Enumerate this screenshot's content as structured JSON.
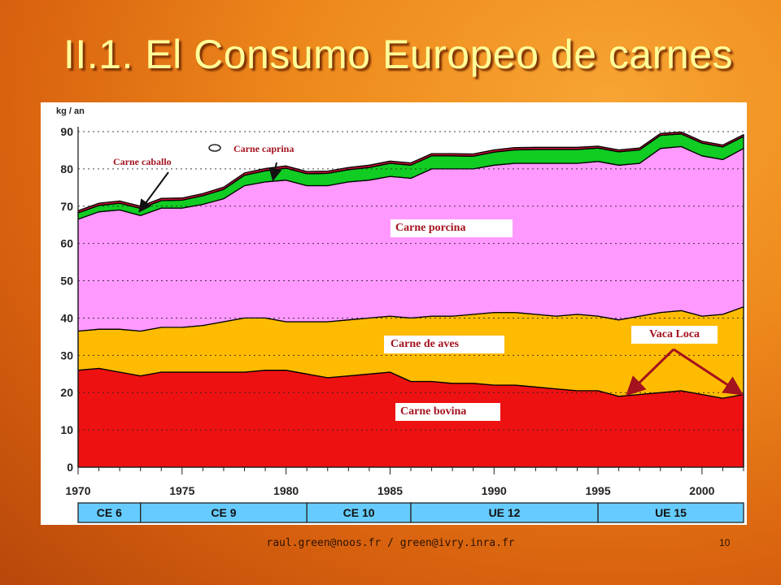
{
  "slide": {
    "title": "II.1. El Consumo Europeo de carnes",
    "footer": "raul.green@noos.fr / green@ivry.inra.fr",
    "page_number": "10"
  },
  "colors": {
    "background": "#e8801c",
    "title": "#ffff99",
    "bovina": "#ee1111",
    "aves": "#ffbb00",
    "porcina": "#ff99ff",
    "caprina": "#11cc22",
    "caballo": "#cc1133",
    "label_text": "#a3121e",
    "arrow": "#a3121e",
    "period_band": "#66ccff"
  },
  "chart_data": {
    "type": "area",
    "stacked": true,
    "ylabel": "kg / an",
    "ylim": [
      0,
      90
    ],
    "yticks": [
      "0",
      "10",
      "20",
      "30",
      "40",
      "50",
      "60",
      "70",
      "80",
      "90"
    ],
    "xlim": [
      1970,
      2002
    ],
    "xticks": [
      "1970",
      "1975",
      "1980",
      "1985",
      "1990",
      "1995",
      "2000"
    ],
    "grid": "dotted-horizontal",
    "x": [
      1970,
      1971,
      1972,
      1973,
      1974,
      1975,
      1976,
      1977,
      1978,
      1979,
      1980,
      1981,
      1982,
      1983,
      1984,
      1985,
      1986,
      1987,
      1988,
      1989,
      1990,
      1991,
      1992,
      1993,
      1994,
      1995,
      1996,
      1997,
      1998,
      1999,
      2000,
      2001,
      2002
    ],
    "series": [
      {
        "name": "Carne bovina",
        "values": [
          26,
          26.5,
          25.5,
          24.5,
          25.5,
          25.5,
          25.5,
          25.5,
          25.5,
          26,
          26,
          25,
          24,
          24.5,
          25,
          25.5,
          23,
          23,
          22.5,
          22.5,
          22,
          22,
          21.5,
          21,
          20.5,
          20.5,
          19,
          19.5,
          20,
          20.5,
          19.5,
          18.5,
          19.5
        ]
      },
      {
        "name": "Carne de aves",
        "values": [
          10.5,
          10.5,
          11.5,
          12,
          12,
          12,
          12.5,
          13.5,
          14.5,
          14,
          13,
          14,
          15,
          15,
          15,
          15,
          17,
          17.5,
          18,
          18.5,
          19.5,
          19.5,
          19.5,
          19.5,
          20.5,
          20,
          20.5,
          21,
          21.5,
          21.5,
          21,
          22.5,
          23.5
        ]
      },
      {
        "name": "Carne porcina",
        "values": [
          30,
          31.5,
          32,
          31,
          32,
          32,
          32.5,
          33,
          35.5,
          36.5,
          38,
          36.5,
          36.5,
          37,
          37,
          37.5,
          37.5,
          39.5,
          39.5,
          39,
          39.5,
          40,
          40.5,
          41,
          40.5,
          41.5,
          41.5,
          41,
          44,
          44,
          43,
          41.5,
          42.5
        ]
      },
      {
        "name": "Carne caprina",
        "values": [
          1.7,
          1.7,
          1.8,
          1.9,
          2,
          2.1,
          2.3,
          2.5,
          2.8,
          3,
          3.2,
          3.2,
          3.3,
          3.3,
          3.4,
          3.5,
          3.5,
          3.5,
          3.5,
          3.4,
          3.5,
          3.6,
          3.7,
          3.7,
          3.7,
          3.6,
          3.6,
          3.6,
          3.5,
          3.4,
          3.4,
          3.4,
          3.2
        ]
      },
      {
        "name": "Carne caballo",
        "values": [
          0.6,
          0.6,
          0.6,
          0.6,
          0.6,
          0.6,
          0.6,
          0.6,
          0.6,
          0.6,
          0.6,
          0.6,
          0.6,
          0.6,
          0.6,
          0.6,
          0.6,
          0.6,
          0.6,
          0.6,
          0.6,
          0.6,
          0.6,
          0.6,
          0.6,
          0.5,
          0.5,
          0.5,
          0.5,
          0.5,
          0.5,
          0.5,
          0.5
        ]
      }
    ],
    "periods": [
      {
        "label": "CE 6",
        "start": 1970,
        "end": 1973
      },
      {
        "label": "CE 9",
        "start": 1973,
        "end": 1981
      },
      {
        "label": "CE 10",
        "start": 1981,
        "end": 1986
      },
      {
        "label": "UE 12",
        "start": 1986,
        "end": 1995
      },
      {
        "label": "UE 15",
        "start": 1995,
        "end": 2002
      }
    ],
    "annotations": {
      "caballo": "Carne caballo",
      "caprina": "Carne caprina",
      "porcina": "Carne porcina",
      "aves": "Carne de aves",
      "bovina": "Carne bovina",
      "vaca_loca": "Vaca Loca",
      "vaca_loca_targets": [
        1996.5,
        2001.8
      ]
    }
  }
}
